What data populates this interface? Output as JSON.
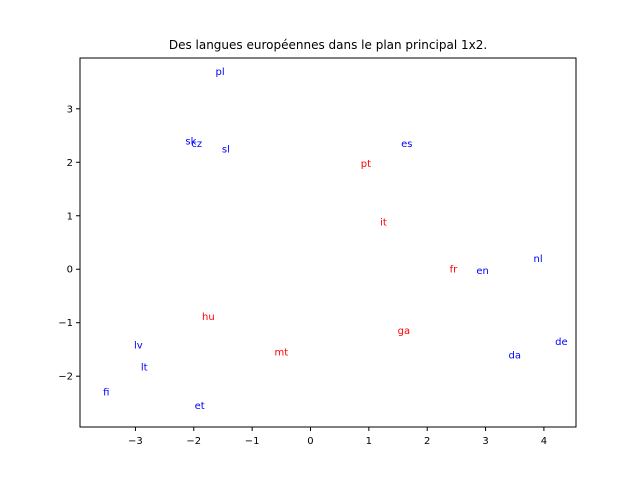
{
  "chart_data": {
    "type": "scatter",
    "title": "Des langues européennes dans le plan principal 1x2.",
    "xlabel": "",
    "ylabel": "",
    "xlim": [
      -3.95,
      4.55
    ],
    "ylim": [
      -2.95,
      3.95
    ],
    "xticks": [
      -3,
      -2,
      -1,
      0,
      1,
      2,
      3,
      4
    ],
    "yticks": [
      -2,
      -1,
      0,
      1,
      2,
      3
    ],
    "grid": false,
    "colors": {
      "blue": "#0000ff",
      "red": "#ff0000"
    },
    "points": [
      {
        "label": "pl",
        "x": -1.55,
        "y": 3.7,
        "color": "blue"
      },
      {
        "label": "sk",
        "x": -2.05,
        "y": 2.4,
        "color": "blue"
      },
      {
        "label": "cz",
        "x": -1.95,
        "y": 2.35,
        "color": "blue"
      },
      {
        "label": "sl",
        "x": -1.45,
        "y": 2.25,
        "color": "blue"
      },
      {
        "label": "es",
        "x": 1.65,
        "y": 2.35,
        "color": "blue"
      },
      {
        "label": "pt",
        "x": 0.95,
        "y": 1.98,
        "color": "red"
      },
      {
        "label": "it",
        "x": 1.25,
        "y": 0.88,
        "color": "red"
      },
      {
        "label": "fr",
        "x": 2.45,
        "y": 0.0,
        "color": "red"
      },
      {
        "label": "en",
        "x": 2.95,
        "y": -0.02,
        "color": "blue"
      },
      {
        "label": "nl",
        "x": 3.9,
        "y": 0.2,
        "color": "blue"
      },
      {
        "label": "hu",
        "x": -1.75,
        "y": -0.88,
        "color": "red"
      },
      {
        "label": "ga",
        "x": 1.6,
        "y": -1.15,
        "color": "red"
      },
      {
        "label": "mt",
        "x": -0.5,
        "y": -1.55,
        "color": "red"
      },
      {
        "label": "lv",
        "x": -2.95,
        "y": -1.42,
        "color": "blue"
      },
      {
        "label": "de",
        "x": 4.3,
        "y": -1.35,
        "color": "blue"
      },
      {
        "label": "da",
        "x": 3.5,
        "y": -1.6,
        "color": "blue"
      },
      {
        "label": "lt",
        "x": -2.85,
        "y": -1.83,
        "color": "blue"
      },
      {
        "label": "fi",
        "x": -3.5,
        "y": -2.3,
        "color": "blue"
      },
      {
        "label": "et",
        "x": -1.9,
        "y": -2.55,
        "color": "blue"
      }
    ]
  }
}
